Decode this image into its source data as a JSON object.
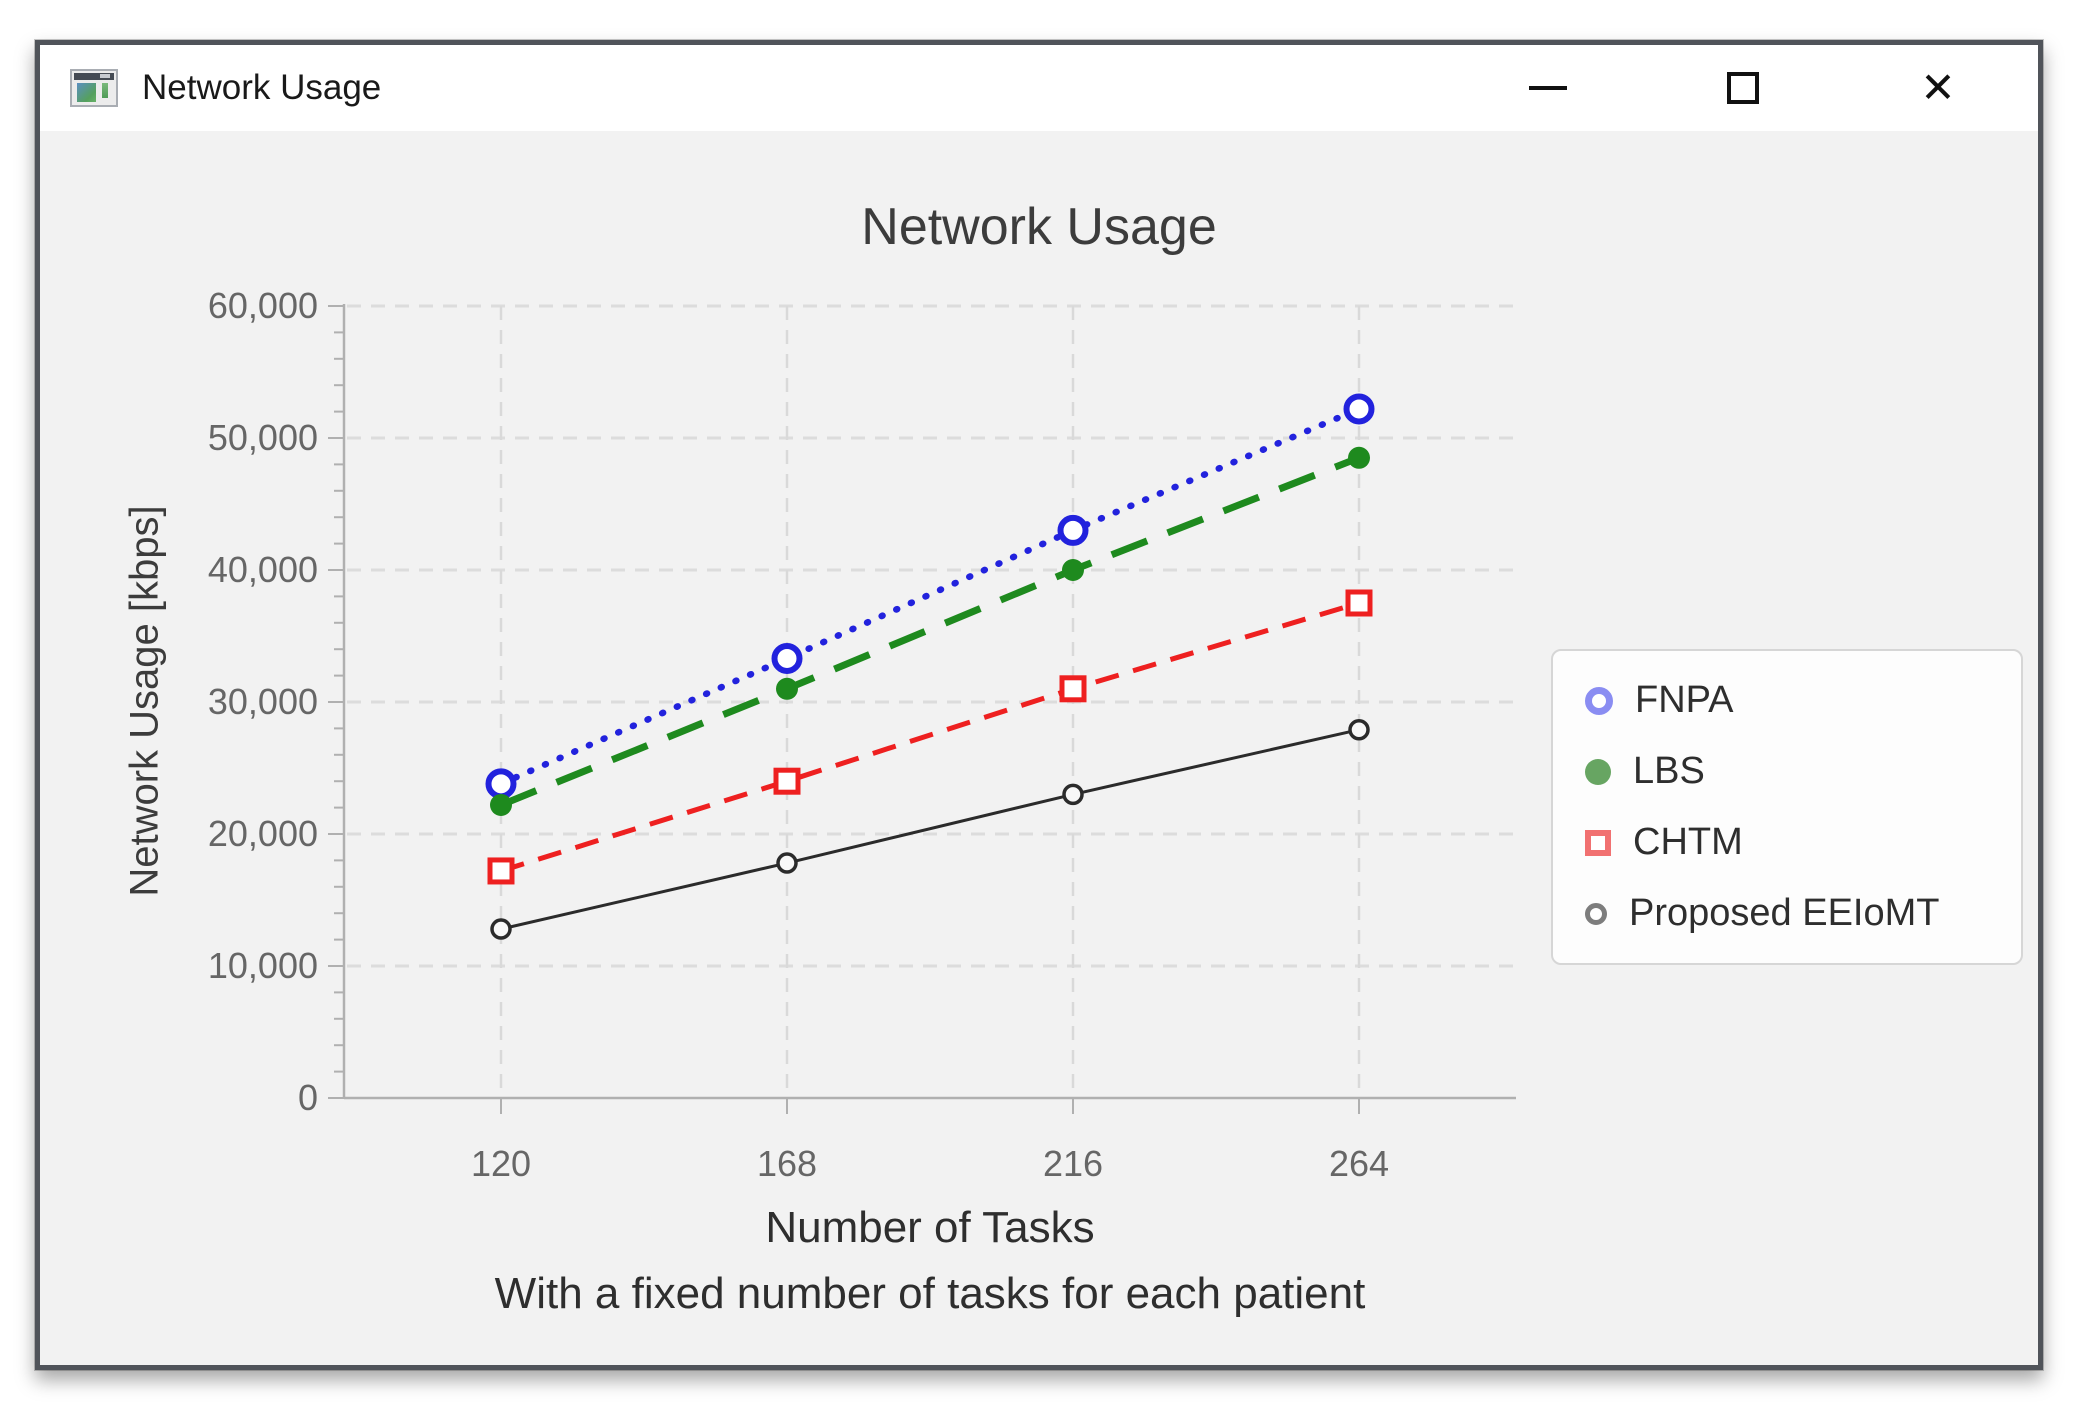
{
  "window": {
    "title": "Network Usage",
    "close_glyph": "✕"
  },
  "chart_data": {
    "type": "line",
    "title": "Network Usage",
    "categories": [
      120,
      168,
      216,
      264
    ],
    "series": [
      {
        "name": "FNPA",
        "values": [
          23800,
          33300,
          43000,
          52200
        ],
        "color": "#2222dd",
        "legend_color": "#8a8df2",
        "line_style": "dotted",
        "marker": "open-circle"
      },
      {
        "name": "LBS",
        "values": [
          22200,
          31000,
          40000,
          48500
        ],
        "color": "#1e8a1e",
        "legend_color": "#67a562",
        "line_style": "long-dash",
        "marker": "filled-circle"
      },
      {
        "name": "CHTM",
        "values": [
          17200,
          24000,
          31000,
          37500
        ],
        "color": "#ee2020",
        "legend_color": "#f17171",
        "line_style": "dash",
        "marker": "open-square"
      },
      {
        "name": "Proposed EEIoMT",
        "values": [
          12800,
          17800,
          23000,
          27900
        ],
        "color": "#2b2b2b",
        "legend_color": "#7d7d7d",
        "line_style": "solid",
        "marker": "open-circle-small"
      }
    ],
    "xlabel": "Number of Tasks",
    "xlabel_note": "With a fixed number of tasks for each patient",
    "ylabel": "Network Usage [kbps]",
    "ylim": [
      0,
      60000
    ],
    "ytick_step": 10000,
    "yminor_step": 2000,
    "grid": "dashed",
    "legend_position": "right"
  }
}
